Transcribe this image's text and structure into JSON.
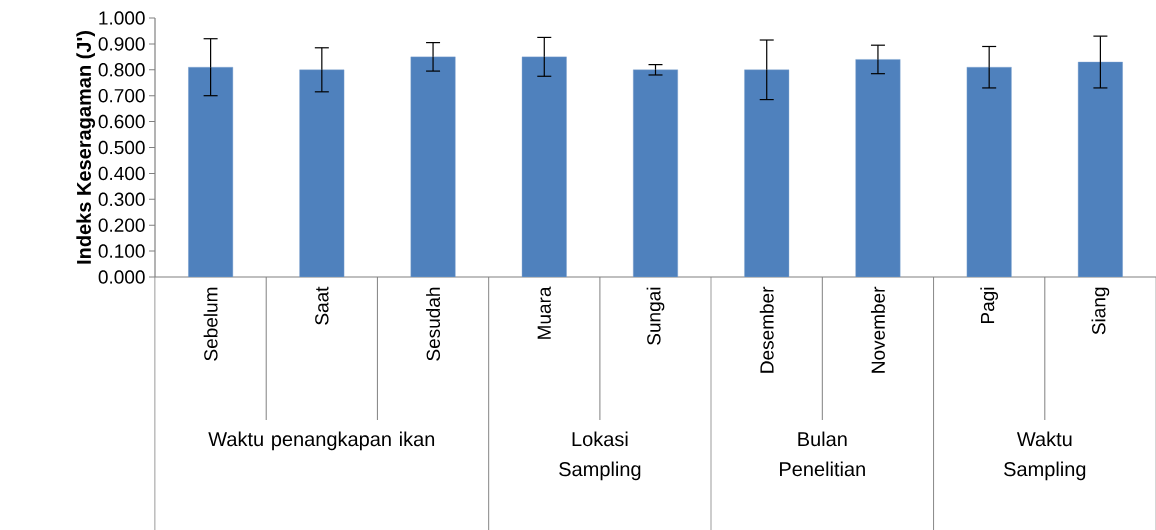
{
  "chart_data": {
    "type": "bar",
    "ylabel": "Indeks Keseragaman (J')",
    "categories": [
      "Sebelum",
      "Saat",
      "Sesudah",
      "Muara",
      "Sungai",
      "Desember",
      "November",
      "Pagi",
      "Siang"
    ],
    "values": [
      0.81,
      0.8,
      0.85,
      0.85,
      0.8,
      0.8,
      0.84,
      0.81,
      0.83
    ],
    "errors": [
      0.11,
      0.085,
      0.055,
      0.075,
      0.02,
      0.115,
      0.055,
      0.08,
      0.1
    ],
    "color": "#4f81bd",
    "ylim": [
      0,
      1
    ],
    "yticks": [
      {
        "value": 0,
        "label": "0.000"
      },
      {
        "value": 0.1,
        "label": "0.100"
      },
      {
        "value": 0.2,
        "label": "0.200"
      },
      {
        "value": 0.3,
        "label": "0.300"
      },
      {
        "value": 0.4,
        "label": "0.400"
      },
      {
        "value": 0.5,
        "label": "0.500"
      },
      {
        "value": 0.6,
        "label": "0.600"
      },
      {
        "value": 0.7,
        "label": "0.700"
      },
      {
        "value": 0.8,
        "label": "0.800"
      },
      {
        "value": 0.9,
        "label": "0.900"
      },
      {
        "value": 1,
        "label": "1.000"
      }
    ],
    "annotations": [
      "Waktu penangkapan ikan",
      "Lokasi Sampling",
      "Bulan Penelitian",
      "Waktu Sampling"
    ],
    "grid": false
  }
}
